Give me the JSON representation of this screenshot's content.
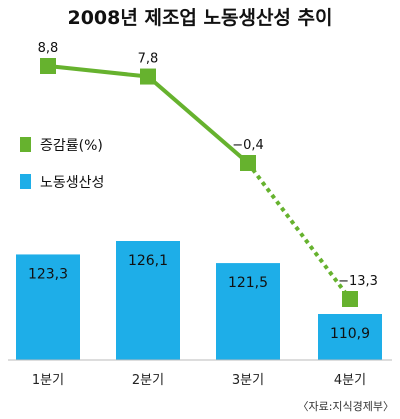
{
  "chart_data": {
    "type": "bar",
    "title": "2008년 제조업 노동생산성 추이",
    "categories": [
      "1분기",
      "2분기",
      "3분기",
      "4분기"
    ],
    "series": [
      {
        "name": "노동생산성",
        "type": "bar",
        "values": [
          123.3,
          126.1,
          121.5,
          110.9
        ],
        "labels": [
          "123,3",
          "126,1",
          "121,5",
          "110,9"
        ],
        "color": "#1eaee8"
      },
      {
        "name": "증감률(%)",
        "type": "line",
        "values": [
          8.8,
          7.8,
          -0.4,
          -13.3
        ],
        "labels": [
          "8,8",
          "7,8",
          "−0,4",
          "−13,3"
        ],
        "color": "#66b22e",
        "dashed_last_segment": true
      }
    ],
    "legend": {
      "items": [
        "증감률(%)",
        "노동생산성"
      ],
      "position": "left"
    },
    "source": "〈자료:지식경제부〉"
  }
}
